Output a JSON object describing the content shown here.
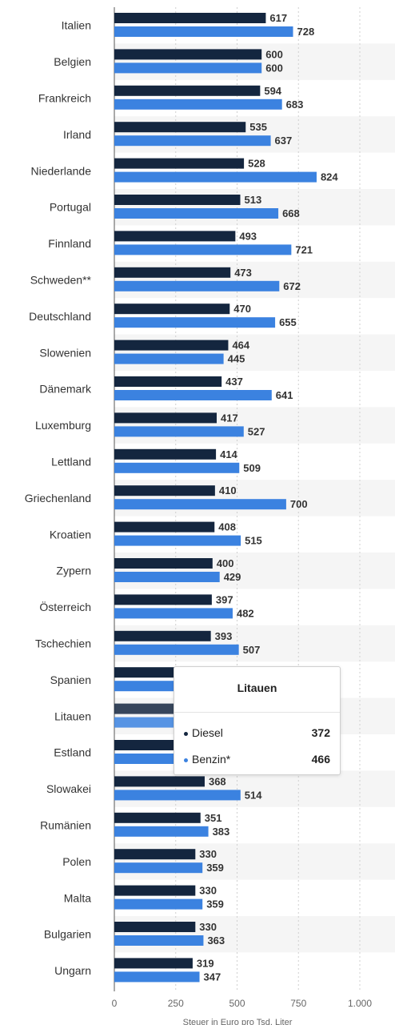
{
  "chart_data": {
    "type": "bar",
    "orientation": "horizontal",
    "categories": [
      "Italien",
      "Belgien",
      "Frankreich",
      "Irland",
      "Niederlande",
      "Portugal",
      "Finnland",
      "Schweden**",
      "Deutschland",
      "Slowenien",
      "Dänemark",
      "Luxemburg",
      "Lettland",
      "Griechenland",
      "Kroatien",
      "Zypern",
      "Österreich",
      "Tschechien",
      "Spanien",
      "Litauen",
      "Estland",
      "Slowakei",
      "Rumänien",
      "Polen",
      "Malta",
      "Bulgarien",
      "Ungarn"
    ],
    "series": [
      {
        "name": "Diesel",
        "color": "#14263f",
        "values": [
          617,
          600,
          594,
          535,
          528,
          513,
          493,
          473,
          470,
          464,
          437,
          417,
          414,
          410,
          408,
          400,
          397,
          393,
          null,
          372,
          null,
          368,
          351,
          330,
          330,
          330,
          319
        ]
      },
      {
        "name": "Benzin*",
        "color": "#3b82e0",
        "values": [
          728,
          600,
          683,
          637,
          824,
          668,
          721,
          672,
          655,
          445,
          641,
          527,
          509,
          700,
          515,
          429,
          482,
          507,
          null,
          466,
          null,
          514,
          383,
          359,
          359,
          363,
          347
        ]
      }
    ],
    "xlim": [
      0,
      1000
    ],
    "xticks": [
      "0",
      "250",
      "500",
      "750",
      "1.000"
    ],
    "xlabel": "Steuer in Euro pro Tsd. Liter",
    "grid": true,
    "highlighted_category": "Litauen"
  },
  "tooltip": {
    "title": "Litauen",
    "rows": [
      {
        "name": "Diesel",
        "value": "372",
        "color": "#14263f"
      },
      {
        "name": "Benzin*",
        "value": "466",
        "color": "#3b82e0"
      }
    ]
  }
}
